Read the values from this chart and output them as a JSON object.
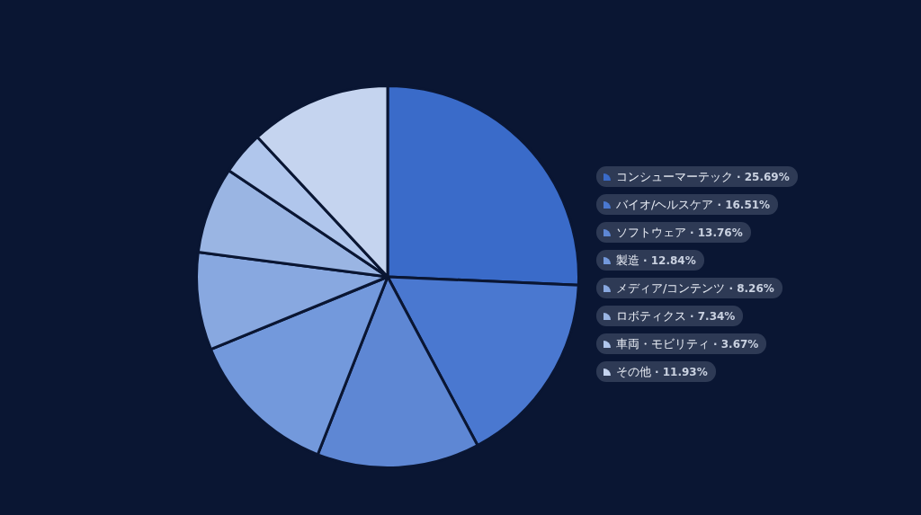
{
  "chart_data": {
    "type": "pie",
    "categories": [
      "コンシューマーテック",
      "バイオ/ヘルスケア",
      "ソフトウェア",
      "製造",
      "メディア/コンテンツ",
      "ロボティクス",
      "車両・モビリティ",
      "その他"
    ],
    "values": [
      25.69,
      16.51,
      13.76,
      12.84,
      8.26,
      7.34,
      3.67,
      11.93
    ],
    "value_labels": [
      "· 25.69%",
      "· 16.51%",
      "· 13.76%",
      "· 12.84%",
      "· 8.26%",
      "· 7.34%",
      "· 3.67%",
      "· 11.93%"
    ],
    "colors": [
      "#3a6bc9",
      "#4a78d0",
      "#5e87d4",
      "#7399dc",
      "#88a8e0",
      "#9ab5e3",
      "#b0c6ec",
      "#c5d4ef"
    ],
    "legend": "right"
  }
}
